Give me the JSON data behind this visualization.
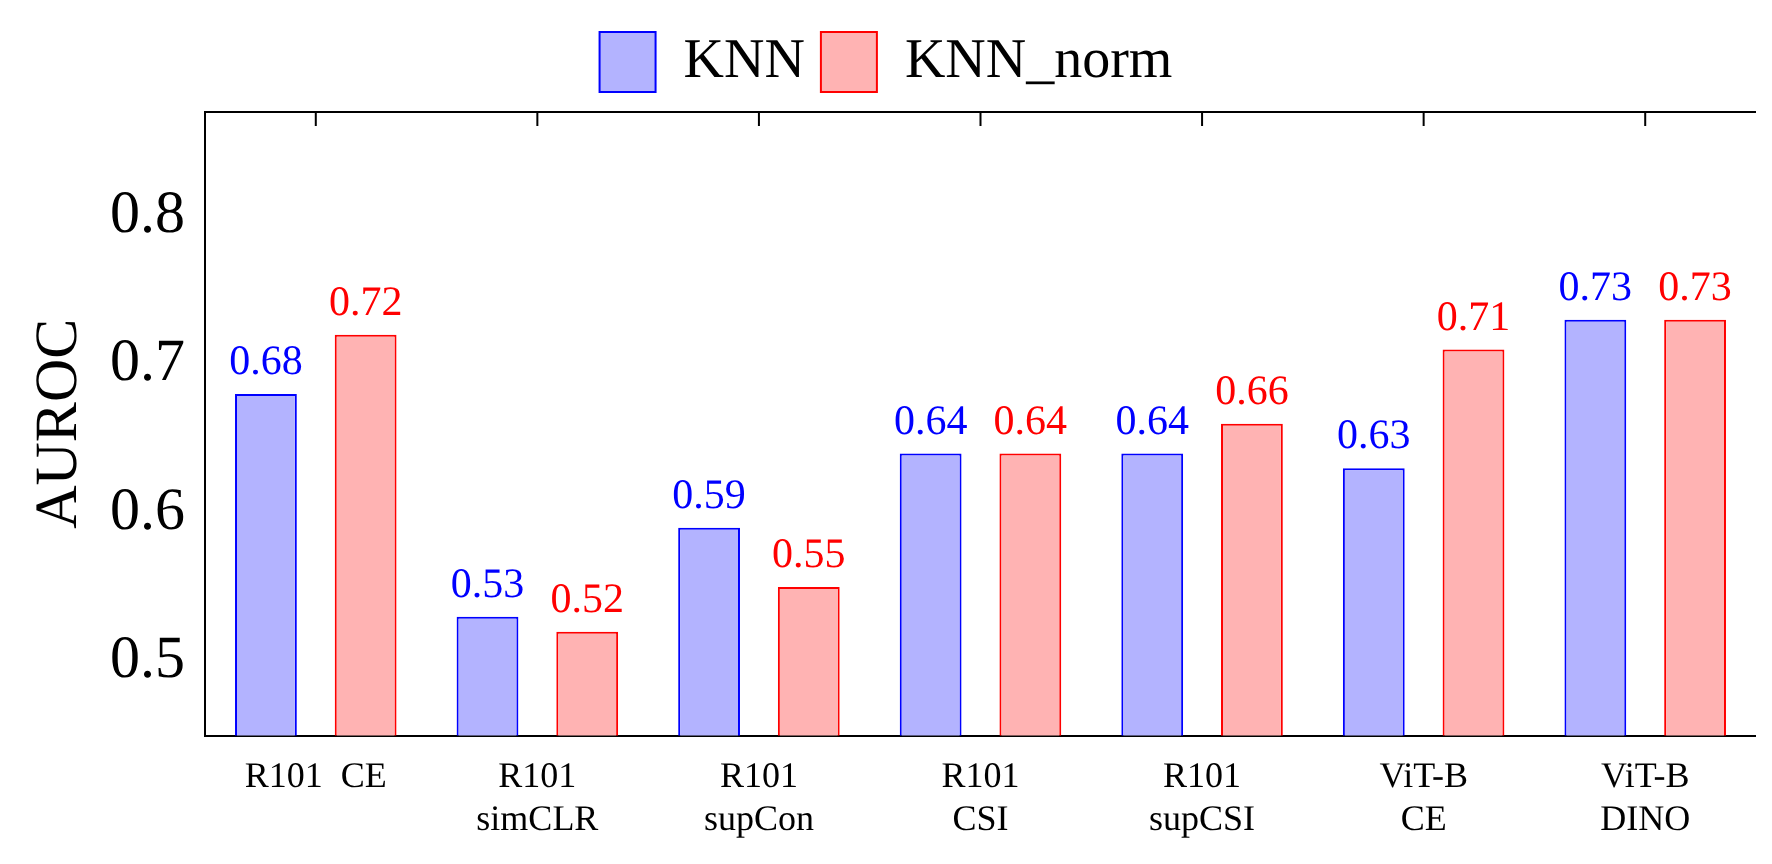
{
  "chart_data": {
    "type": "bar",
    "ylabel": "AUROC",
    "categories": [
      "R101  CE",
      "R101\nsimCLR",
      "R101\nsupCon",
      "R101\nCSI",
      "R101\nsupCSI",
      "ViT-B\nCE",
      "ViT-B\nDINO"
    ],
    "series": [
      {
        "name": "KNN",
        "color": "#b3b3ff",
        "values": [
          0.68,
          0.53,
          0.59,
          0.64,
          0.64,
          0.63,
          0.73
        ]
      },
      {
        "name": "KNN_norm",
        "color": "#ffb3b3",
        "values": [
          0.72,
          0.52,
          0.55,
          0.64,
          0.66,
          0.71,
          0.73
        ]
      }
    ],
    "ylim": [
      0.45,
      0.87
    ],
    "yticks": [
      0.5,
      0.6,
      0.7,
      0.8
    ],
    "data_labels": true,
    "legend": "top",
    "grid": false
  }
}
